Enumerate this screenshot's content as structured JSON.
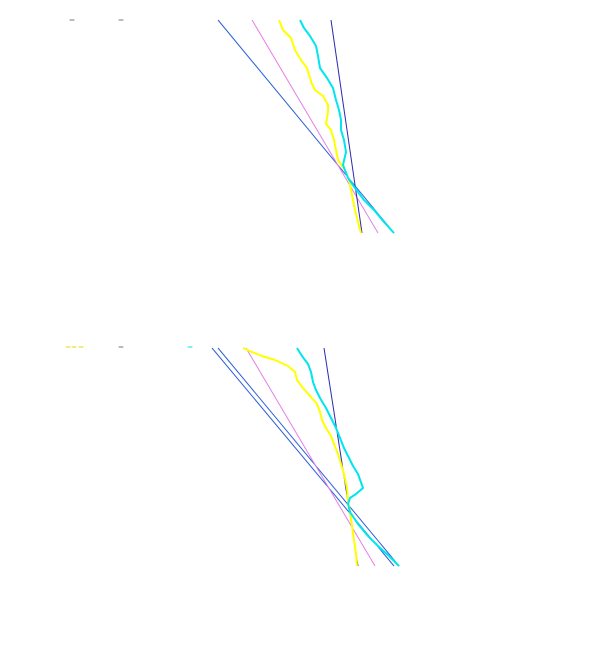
{
  "chart_data": [
    {
      "type": "line",
      "grid": false,
      "legend": "none",
      "series": [
        {
          "color": "#2b5fd9",
          "x": [
            0,
            100
          ],
          "y": [
            0,
            100
          ]
        },
        {
          "color": "#e77ee7",
          "x": [
            0,
            100
          ],
          "y": [
            0,
            100
          ]
        },
        {
          "color": "#2a2ab0",
          "x": [
            0,
            100
          ],
          "y": [
            0,
            100
          ]
        },
        {
          "color": "#ffff00",
          "x": [
            0,
            4,
            8,
            12,
            17,
            21,
            26,
            31,
            36,
            42,
            47,
            52,
            58,
            63,
            69,
            74,
            80,
            86,
            91,
            96,
            100
          ],
          "y": [
            0,
            2,
            4,
            7,
            10,
            12,
            15,
            18,
            20,
            22,
            26,
            31,
            36,
            41,
            46,
            52,
            58,
            63,
            68,
            74,
            80
          ]
        },
        {
          "color": "#00e5ee",
          "x": [
            0,
            5,
            9,
            14,
            18,
            23,
            28,
            33,
            39,
            44,
            50,
            55,
            61,
            67,
            72,
            78,
            84,
            89,
            95,
            100
          ],
          "y": [
            0,
            3,
            6,
            9,
            12,
            15,
            18,
            21,
            24,
            27,
            31,
            35,
            40,
            45,
            50,
            56,
            62,
            68,
            74,
            80
          ]
        }
      ]
    },
    {
      "type": "line",
      "grid": false,
      "legend": "none",
      "series": [
        {
          "color": "#2b5fd9",
          "x": [
            0,
            100
          ],
          "y": [
            0,
            100
          ]
        },
        {
          "color": "#2b5fd9",
          "x": [
            0,
            100
          ],
          "y": [
            0,
            100
          ]
        },
        {
          "color": "#e77ee7",
          "x": [
            0,
            100
          ],
          "y": [
            0,
            100
          ]
        },
        {
          "color": "#2a2ab0",
          "x": [
            0,
            100
          ],
          "y": [
            0,
            100
          ]
        },
        {
          "color": "#ffff00",
          "x": [
            0,
            4,
            9,
            14,
            19,
            24,
            29,
            34,
            40,
            45,
            51,
            56,
            62,
            68,
            74,
            80,
            86,
            91,
            96,
            100
          ],
          "y": [
            0,
            2,
            5,
            8,
            11,
            14,
            17,
            20,
            23,
            27,
            31,
            36,
            41,
            46,
            51,
            57,
            63,
            70,
            78,
            88
          ]
        },
        {
          "color": "#00e5ee",
          "x": [
            0,
            5,
            10,
            15,
            20,
            25,
            30,
            35,
            40,
            46,
            51,
            57,
            63,
            69,
            75,
            81,
            87,
            92,
            97,
            100
          ],
          "y": [
            0,
            3,
            6,
            9,
            12,
            15,
            18,
            21,
            25,
            29,
            33,
            37,
            42,
            47,
            52,
            58,
            64,
            70,
            75,
            80
          ]
        }
      ]
    }
  ]
}
